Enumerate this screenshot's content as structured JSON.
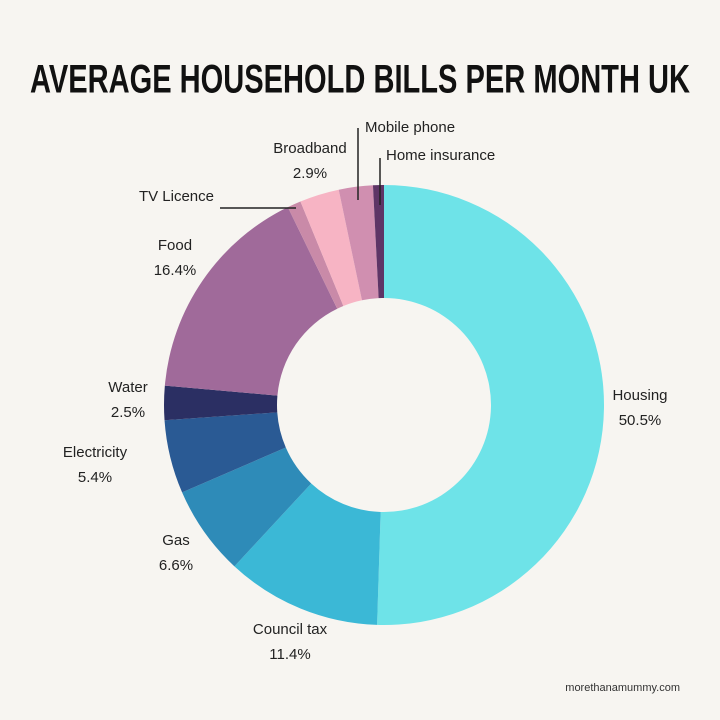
{
  "chart_data": {
    "type": "donut",
    "title": "AVERAGE HOUSEHOLD BILLS PER MONTH UK",
    "categories": [
      "Housing",
      "Council tax",
      "Gas",
      "Electricity",
      "Water",
      "Food",
      "TV Licence",
      "Broadband",
      "Mobile phone",
      "Home insurance"
    ],
    "values": [
      50.5,
      11.4,
      6.6,
      5.4,
      2.5,
      16.4,
      1.0,
      2.9,
      2.5,
      0.8
    ],
    "value_labels": [
      "50.5%",
      "11.4%",
      "6.6%",
      "5.4%",
      "2.5%",
      "16.4%",
      null,
      "2.9%",
      null,
      null
    ],
    "colors": [
      "#6ee3e8",
      "#3bb8d6",
      "#2e8bb8",
      "#2a5a94",
      "#2b2f63",
      "#a06a9a",
      "#c98aa8",
      "#f7b4c4",
      "#d08fb0",
      "#5e3566"
    ],
    "source": "morethanamummy.com"
  }
}
